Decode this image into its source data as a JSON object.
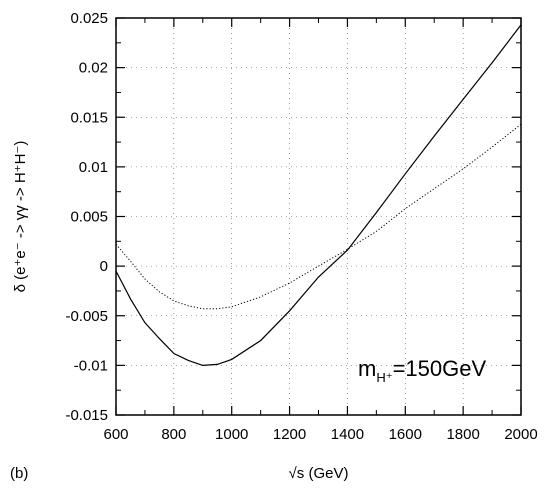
{
  "chart_data": {
    "type": "line",
    "xlabel": "√s (GeV)",
    "ylabel": "δ (e⁺e⁻ -> γγ -> H⁺H⁻)",
    "xlim": [
      600,
      2000
    ],
    "ylim": [
      -0.015,
      0.025
    ],
    "xticks": [
      600,
      800,
      1000,
      1200,
      1400,
      1600,
      1800,
      2000
    ],
    "yticks": [
      {
        "v": 0.025,
        "label": "0.025"
      },
      {
        "v": 0.02,
        "label": "0.02"
      },
      {
        "v": 0.015,
        "label": "0.015"
      },
      {
        "v": 0.01,
        "label": "0.01"
      },
      {
        "v": 0.005,
        "label": "0.005"
      },
      {
        "v": 0,
        "label": "0"
      },
      {
        "v": -0.005,
        "label": "-0.005"
      },
      {
        "v": -0.01,
        "label": "-0.01"
      },
      {
        "v": -0.015,
        "label": "-0.015"
      }
    ],
    "grid": true,
    "panel_label": "(b)",
    "annotation": {
      "main": "m",
      "sub": "H⁺",
      "rest": "=150GeV"
    },
    "series": [
      {
        "style": "solid",
        "color": "#000000",
        "x": [
          600,
          650,
          700,
          750,
          800,
          850,
          900,
          950,
          1000,
          1100,
          1200,
          1300,
          1400,
          1500,
          1600,
          1700,
          1800,
          1900,
          2000
        ],
        "y": [
          -0.0005,
          -0.0033,
          -0.0057,
          -0.0073,
          -0.0088,
          -0.0095,
          -0.01,
          -0.0099,
          -0.0094,
          -0.0075,
          -0.0045,
          -0.0011,
          0.0016,
          0.0054,
          0.0093,
          0.0131,
          0.0168,
          0.0205,
          0.0243
        ]
      },
      {
        "style": "dotted",
        "color": "#000000",
        "x": [
          600,
          650,
          700,
          750,
          800,
          850,
          900,
          950,
          1000,
          1100,
          1200,
          1300,
          1400,
          1500,
          1600,
          1700,
          1800,
          1900,
          2000
        ],
        "y": [
          0.0022,
          0.0005,
          -0.0013,
          -0.0026,
          -0.0035,
          -0.004,
          -0.0043,
          -0.0043,
          -0.0041,
          -0.0031,
          -0.0017,
          0.0,
          0.0017,
          0.0035,
          0.0058,
          0.0078,
          0.0098,
          0.012,
          0.0143
        ]
      }
    ]
  }
}
